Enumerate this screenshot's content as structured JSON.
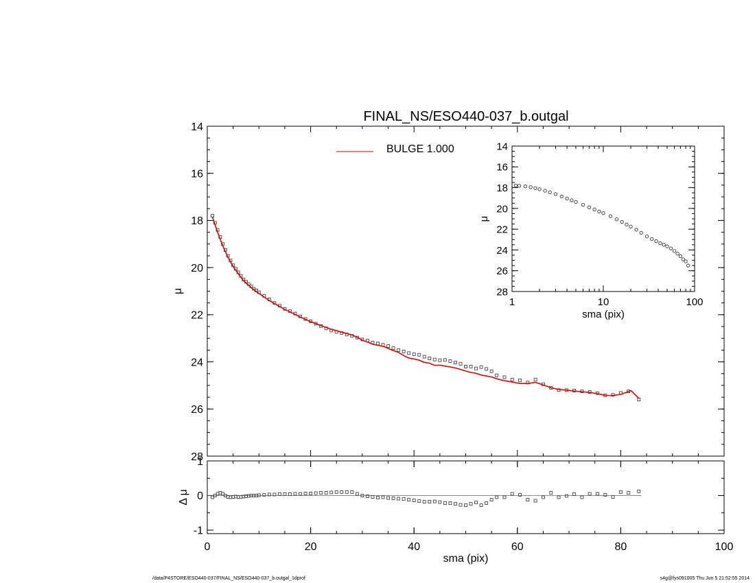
{
  "title": "FINAL_NS/ESO440-037_b.outgal",
  "legend": {
    "label": "BULGE  1.000",
    "color": "#e00000"
  },
  "footer": {
    "left": "/data/P4STORE/ESO440-037/FINAL_NS/ESO440-037_b.outgal_1dprof",
    "right": "s4g@fys091005  Thu Jun  5 21:52:55 2014"
  },
  "colors": {
    "model": "#e00000",
    "data": "#444444",
    "axes": "#000000"
  },
  "chart_data": [
    {
      "id": "main",
      "type": "scatter",
      "title": "FINAL_NS/ESO440-037_b.outgal",
      "xlabel": "",
      "ylabel": "μ",
      "xlim": [
        0,
        100
      ],
      "ylim": [
        28,
        14
      ],
      "yticks": [
        "14",
        "16",
        "18",
        "20",
        "22",
        "24",
        "26",
        "28"
      ],
      "series": [
        {
          "name": "data",
          "marker": "square",
          "x": [
            1.0,
            1.5,
            2.0,
            2.5,
            3.0,
            3.5,
            4.0,
            4.5,
            5.0,
            5.5,
            6.0,
            6.5,
            7.0,
            7.5,
            8.0,
            8.5,
            9.0,
            9.5,
            10.0,
            11.0,
            12.0,
            13.0,
            14.0,
            15.0,
            16.0,
            17.0,
            18.0,
            19.0,
            20.0,
            21.0,
            22.0,
            23.0,
            24.0,
            25.0,
            26.0,
            27.0,
            28.0,
            29.0,
            30.0,
            31.0,
            32.0,
            33.0,
            34.0,
            35.0,
            36.0,
            37.0,
            38.0,
            39.0,
            40.0,
            41.0,
            42.0,
            43.0,
            44.0,
            45.0,
            46.0,
            47.0,
            48.0,
            49.0,
            50.0,
            51.0,
            52.0,
            53.0,
            54.0,
            55.0,
            56.0,
            57.5,
            59.0,
            60.5,
            62.0,
            63.5,
            65.0,
            66.5,
            68.0,
            69.5,
            71.0,
            72.5,
            74.0,
            75.5,
            77.0,
            78.5,
            80.0,
            81.5,
            83.5
          ],
          "y": [
            17.8,
            18.1,
            18.4,
            18.7,
            19.0,
            19.25,
            19.5,
            19.7,
            19.9,
            20.05,
            20.2,
            20.35,
            20.5,
            20.6,
            20.7,
            20.8,
            20.9,
            20.97,
            21.05,
            21.2,
            21.35,
            21.5,
            21.62,
            21.75,
            21.85,
            21.95,
            22.07,
            22.18,
            22.28,
            22.38,
            22.48,
            22.58,
            22.67,
            22.73,
            22.78,
            22.84,
            22.9,
            22.97,
            23.05,
            23.1,
            23.18,
            23.22,
            23.28,
            23.33,
            23.42,
            23.5,
            23.56,
            23.63,
            23.68,
            23.7,
            23.78,
            23.85,
            23.9,
            23.93,
            23.92,
            23.97,
            24.03,
            24.08,
            24.2,
            24.2,
            24.28,
            24.22,
            24.3,
            24.4,
            24.57,
            24.65,
            24.75,
            24.78,
            24.88,
            24.75,
            24.95,
            25.1,
            25.2,
            25.2,
            25.22,
            25.25,
            25.28,
            25.33,
            25.42,
            25.4,
            25.32,
            25.25,
            25.6
          ]
        },
        {
          "name": "BULGE  1.000",
          "type": "line",
          "x": [
            1.0,
            1.5,
            2.0,
            2.5,
            3.0,
            3.5,
            4.0,
            4.5,
            5.0,
            5.5,
            6.0,
            6.5,
            7.0,
            7.5,
            8.0,
            8.5,
            9.0,
            9.5,
            10.0,
            11.0,
            12.0,
            13.0,
            14.0,
            15.0,
            16.0,
            17.0,
            18.0,
            19.0,
            20.0,
            21.0,
            22.0,
            23.0,
            24.0,
            25.0,
            26.0,
            27.0,
            28.0,
            29.0,
            30.0,
            31.0,
            32.0,
            33.0,
            34.0,
            35.0,
            36.0,
            37.0,
            38.0,
            39.0,
            40.0,
            41.0,
            42.0,
            43.0,
            44.0,
            45.0,
            46.0,
            47.0,
            48.0,
            49.0,
            50.0,
            51.0,
            52.0,
            53.0,
            54.0,
            55.0,
            56.0,
            57.5,
            59.0,
            60.5,
            62.0,
            63.5,
            65.0,
            66.5,
            68.0,
            69.5,
            71.0,
            72.5,
            74.0,
            75.5,
            77.0,
            78.5,
            80.0,
            81.0,
            82.0,
            83.5
          ],
          "y": [
            17.85,
            18.18,
            18.5,
            18.8,
            19.08,
            19.33,
            19.56,
            19.76,
            19.95,
            20.11,
            20.26,
            20.41,
            20.55,
            20.65,
            20.75,
            20.85,
            20.94,
            21.02,
            21.1,
            21.25,
            21.4,
            21.53,
            21.65,
            21.78,
            21.88,
            21.99,
            22.1,
            22.2,
            22.3,
            22.38,
            22.46,
            22.54,
            22.62,
            22.68,
            22.74,
            22.8,
            22.86,
            22.96,
            23.08,
            23.16,
            23.25,
            23.3,
            23.34,
            23.43,
            23.52,
            23.6,
            23.73,
            23.84,
            23.88,
            23.93,
            24.02,
            24.06,
            24.15,
            24.14,
            24.18,
            24.22,
            24.26,
            24.32,
            24.39,
            24.45,
            24.49,
            24.56,
            24.6,
            24.64,
            24.72,
            24.8,
            24.86,
            24.92,
            24.92,
            24.87,
            24.98,
            25.1,
            25.17,
            25.2,
            25.24,
            25.27,
            25.3,
            25.35,
            25.42,
            25.43,
            25.38,
            25.3,
            25.22,
            25.55
          ]
        }
      ]
    },
    {
      "id": "residual",
      "type": "scatter",
      "xlabel": "sma (pix)",
      "ylabel": "Δ μ",
      "xlim": [
        0,
        100
      ],
      "ylim": [
        -1.1,
        1.0
      ],
      "xticks": [
        "0",
        "20",
        "40",
        "60",
        "80",
        "100"
      ],
      "yticks": [
        "1",
        "0",
        "-1"
      ],
      "zero_line": true,
      "series": [
        {
          "name": "residual",
          "marker": "square",
          "x": [
            1.0,
            1.5,
            2.0,
            2.5,
            3.0,
            3.5,
            4.0,
            4.5,
            5.0,
            5.5,
            6.0,
            6.5,
            7.0,
            7.5,
            8.0,
            8.5,
            9.0,
            9.5,
            10.0,
            11.0,
            12.0,
            13.0,
            14.0,
            15.0,
            16.0,
            17.0,
            18.0,
            19.0,
            20.0,
            21.0,
            22.0,
            23.0,
            24.0,
            25.0,
            26.0,
            27.0,
            28.0,
            29.0,
            30.0,
            31.0,
            32.0,
            33.0,
            34.0,
            35.0,
            36.0,
            37.0,
            38.0,
            39.0,
            40.0,
            41.0,
            42.0,
            43.0,
            44.0,
            45.0,
            46.0,
            47.0,
            48.0,
            49.0,
            50.0,
            51.0,
            52.0,
            53.0,
            54.0,
            55.0,
            56.0,
            57.5,
            59.0,
            60.5,
            62.0,
            63.5,
            65.0,
            66.5,
            68.0,
            69.5,
            71.0,
            72.5,
            74.0,
            75.5,
            77.0,
            78.5,
            80.0,
            81.5,
            83.5
          ],
          "y": [
            -0.05,
            0.0,
            0.05,
            0.08,
            0.05,
            0.0,
            -0.04,
            -0.05,
            -0.04,
            -0.03,
            -0.04,
            -0.04,
            -0.03,
            -0.02,
            -0.01,
            0.0,
            0.0,
            0.0,
            0.01,
            0.02,
            0.03,
            0.03,
            0.04,
            0.04,
            0.04,
            0.05,
            0.05,
            0.06,
            0.06,
            0.07,
            0.08,
            0.08,
            0.09,
            0.1,
            0.1,
            0.1,
            0.1,
            0.05,
            0.0,
            -0.02,
            -0.04,
            -0.06,
            -0.05,
            -0.07,
            -0.08,
            -0.09,
            -0.1,
            -0.12,
            -0.14,
            -0.16,
            -0.18,
            -0.18,
            -0.17,
            -0.19,
            -0.22,
            -0.22,
            -0.24,
            -0.27,
            -0.28,
            -0.24,
            -0.2,
            -0.28,
            -0.22,
            -0.12,
            -0.05,
            -0.05,
            0.05,
            0.02,
            -0.12,
            -0.15,
            -0.05,
            0.08,
            -0.05,
            -0.01,
            0.04,
            -0.05,
            0.05,
            0.05,
            0.02,
            -0.04,
            0.1,
            0.08,
            0.12
          ]
        }
      ]
    },
    {
      "id": "inset",
      "type": "scatter",
      "xlabel": "sma (pix)",
      "ylabel": "μ",
      "xscale": "log",
      "xlim": [
        1,
        100
      ],
      "ylim": [
        28,
        14
      ],
      "xticks": [
        "1",
        "10",
        "100"
      ],
      "yticks": [
        "14",
        "16",
        "18",
        "20",
        "22",
        "24",
        "26",
        "28"
      ],
      "series": [
        {
          "name": "data",
          "marker": "circle",
          "x": [
            1.1,
            1.2,
            1.4,
            1.6,
            1.8,
            2.0,
            2.3,
            2.6,
            3.0,
            3.5,
            4.0,
            4.5,
            5.0,
            6.0,
            7.0,
            8.0,
            9.0,
            10.0,
            12.0,
            14.0,
            16.0,
            18.0,
            20.0,
            23.0,
            26.0,
            30.0,
            34.0,
            38.0,
            42.0,
            46.0,
            50.0,
            55.0,
            60.0,
            65.0,
            70.0,
            75.0,
            80.0,
            85.0
          ],
          "y": [
            17.8,
            17.82,
            17.88,
            17.95,
            18.05,
            18.15,
            18.3,
            18.45,
            18.62,
            18.85,
            19.05,
            19.22,
            19.38,
            19.65,
            19.9,
            20.1,
            20.3,
            20.45,
            20.75,
            21.05,
            21.3,
            21.55,
            21.75,
            22.05,
            22.35,
            22.7,
            22.95,
            23.15,
            23.35,
            23.5,
            23.65,
            23.85,
            24.1,
            24.35,
            24.6,
            24.9,
            25.1,
            25.5
          ]
        }
      ]
    }
  ]
}
